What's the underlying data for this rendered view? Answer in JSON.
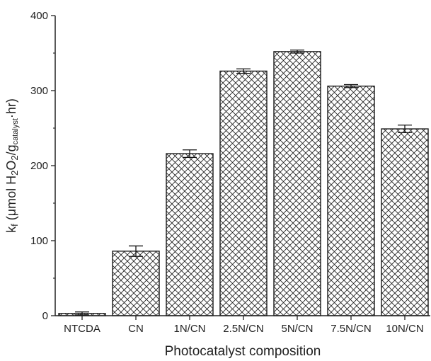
{
  "chart_data": {
    "type": "bar",
    "title": "",
    "xlabel": "Photocatalyst composition",
    "ylabel": {
      "text": "k",
      "sub_f": "f",
      "mu": "μ",
      "mol": "mol H",
      "sub_2a": "2",
      "o": "O",
      "sub_2b": "2",
      "slash_g": "/g",
      "sub_cat": "catalyst",
      "dot_hr": "·hr)",
      "open": "(",
      "full": "kf (μmol H2O2/gcatalyst·hr)"
    },
    "categories": [
      "NTCDA",
      "CN",
      "1N/CN",
      "2.5N/CN",
      "5N/CN",
      "7.5N/CN",
      "10N/CN"
    ],
    "values": [
      3,
      86,
      216,
      326,
      352,
      306,
      249
    ],
    "errors": [
      2,
      7,
      5,
      3,
      2,
      2,
      5
    ],
    "ylim": [
      0,
      400
    ],
    "yticks": [
      0,
      100,
      200,
      300,
      400
    ],
    "bar_pattern": "crosshatch",
    "bar_color": "#1a1a1a",
    "grid": false,
    "legend": "none"
  }
}
